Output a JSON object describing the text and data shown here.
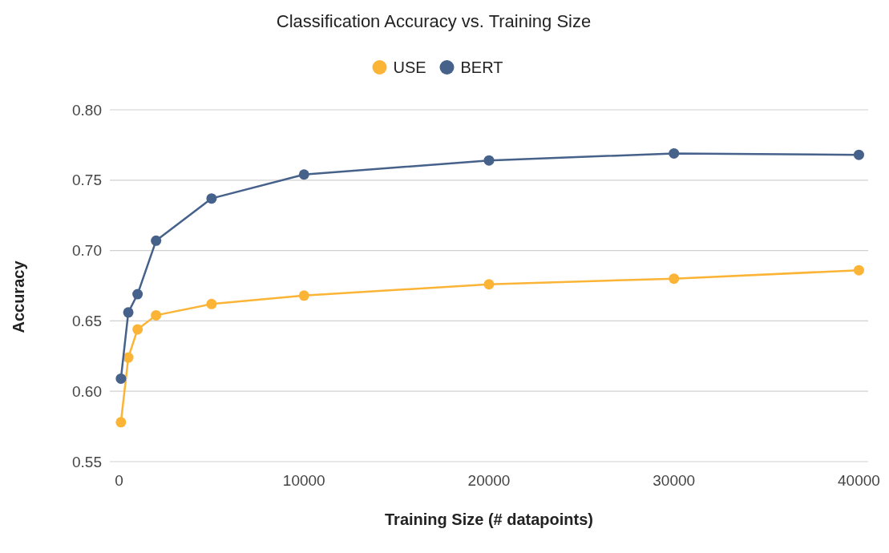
{
  "chart_data": {
    "type": "line",
    "title": "Classification Accuracy vs. Training Size",
    "xlabel": "Training Size (# datapoints)",
    "ylabel": "Accuracy",
    "x": [
      100,
      500,
      1000,
      2000,
      5000,
      10000,
      20000,
      30000,
      40000
    ],
    "series": [
      {
        "name": "USE",
        "color": "#fbb436",
        "values": [
          0.578,
          0.624,
          0.644,
          0.654,
          0.662,
          0.668,
          0.676,
          0.68,
          0.686
        ]
      },
      {
        "name": "BERT",
        "color": "#46618a",
        "values": [
          0.609,
          0.656,
          0.669,
          0.707,
          0.737,
          0.754,
          0.764,
          0.769,
          0.768
        ]
      }
    ],
    "xlim": [
      -500,
      40500
    ],
    "xticks": [
      0,
      10000,
      20000,
      30000,
      40000
    ],
    "ylim": [
      0.55,
      0.8
    ],
    "yticks": [
      {
        "value": 0.55,
        "label": "0.55"
      },
      {
        "value": 0.6,
        "label": "0.60"
      },
      {
        "value": 0.65,
        "label": "0.65"
      },
      {
        "value": 0.7,
        "label": "0.70"
      },
      {
        "value": 0.75,
        "label": "0.75"
      },
      {
        "value": 0.8,
        "label": "0.80"
      }
    ],
    "grid": "y",
    "legend": "top",
    "marker": "circle",
    "line_style": "solid"
  }
}
